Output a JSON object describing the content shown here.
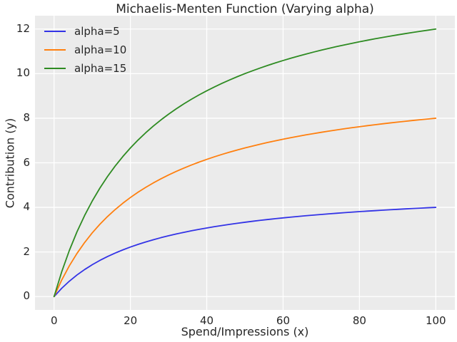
{
  "chart_data": {
    "type": "line",
    "title": "Michaelis-Menten Function (Varying alpha)",
    "xlabel": "Spend/Impressions (x)",
    "ylabel": "Contribution (y)",
    "x": [
      0,
      2,
      4,
      6,
      8,
      10,
      12,
      14,
      16,
      18,
      20,
      22,
      24,
      26,
      28,
      30,
      32,
      34,
      36,
      38,
      40,
      42,
      44,
      46,
      48,
      50,
      52,
      54,
      56,
      58,
      60,
      62,
      64,
      66,
      68,
      70,
      72,
      74,
      76,
      78,
      80,
      82,
      84,
      86,
      88,
      90,
      92,
      94,
      96,
      98,
      100
    ],
    "series": [
      {
        "name": "alpha=5",
        "color": "#3333e6",
        "values": [
          0,
          0.37,
          0.69,
          0.968,
          1.212,
          1.429,
          1.622,
          1.795,
          1.951,
          2.093,
          2.222,
          2.34,
          2.449,
          2.549,
          2.642,
          2.727,
          2.807,
          2.881,
          2.951,
          3.016,
          3.077,
          3.134,
          3.188,
          3.239,
          3.288,
          3.333,
          3.377,
          3.418,
          3.457,
          3.494,
          3.529,
          3.563,
          3.596,
          3.626,
          3.656,
          3.684,
          3.711,
          3.737,
          3.762,
          3.786,
          3.81,
          3.832,
          3.853,
          3.874,
          3.894,
          3.913,
          3.932,
          3.95,
          3.967,
          3.984,
          4.0
        ]
      },
      {
        "name": "alpha=10",
        "color": "#ff7f0e",
        "values": [
          0,
          0.741,
          1.379,
          1.935,
          2.424,
          2.857,
          3.243,
          3.59,
          3.902,
          4.186,
          4.444,
          4.681,
          4.898,
          5.098,
          5.283,
          5.455,
          5.614,
          5.763,
          5.902,
          6.032,
          6.154,
          6.269,
          6.377,
          6.479,
          6.575,
          6.667,
          6.753,
          6.835,
          6.914,
          6.988,
          7.059,
          7.126,
          7.191,
          7.253,
          7.312,
          7.368,
          7.423,
          7.475,
          7.525,
          7.573,
          7.619,
          7.664,
          7.706,
          7.748,
          7.788,
          7.826,
          7.863,
          7.899,
          7.934,
          7.967,
          8.0
        ]
      },
      {
        "name": "alpha=15",
        "color": "#2e8b22",
        "values": [
          0,
          1.111,
          2.069,
          2.903,
          3.636,
          4.286,
          4.865,
          5.385,
          5.854,
          6.279,
          6.667,
          7.021,
          7.347,
          7.647,
          7.925,
          8.182,
          8.421,
          8.644,
          8.852,
          9.048,
          9.231,
          9.403,
          9.565,
          9.718,
          9.863,
          10.0,
          10.13,
          10.253,
          10.37,
          10.482,
          10.588,
          10.69,
          10.787,
          10.879,
          10.968,
          11.053,
          11.134,
          11.212,
          11.287,
          11.359,
          11.429,
          11.495,
          11.56,
          11.622,
          11.681,
          11.739,
          11.795,
          11.849,
          11.901,
          11.951,
          12.0
        ]
      }
    ],
    "xticks": [
      0,
      20,
      40,
      60,
      80,
      100
    ],
    "yticks": [
      0,
      2,
      4,
      6,
      8,
      10,
      12
    ],
    "xlim": [
      -5,
      105
    ],
    "ylim": [
      -0.6,
      12.6
    ],
    "grid": true,
    "legend": {
      "position": "upper-left",
      "entries": [
        "alpha=5",
        "alpha=10",
        "alpha=15"
      ]
    },
    "styles": {
      "figure_bg": "#ffffff",
      "plot_bg": "#ebebeb",
      "grid_color": "#ffffff",
      "text_color": "#262626"
    }
  }
}
